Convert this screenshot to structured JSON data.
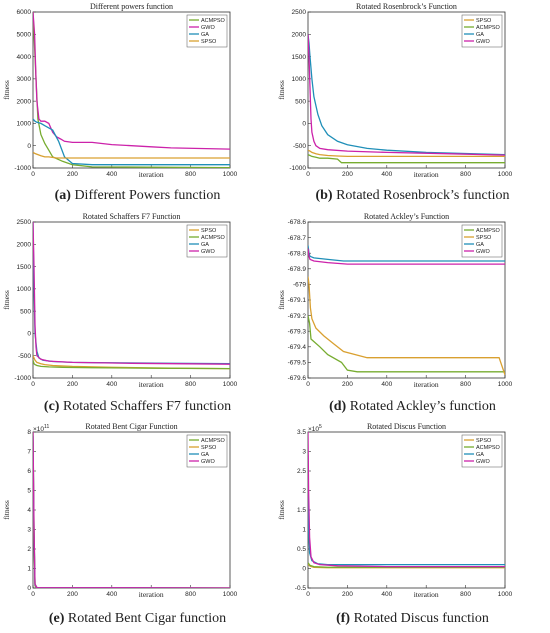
{
  "colors": {
    "ACMPSO": "#77ac30",
    "GWO": "#cc22aa",
    "GA": "#1f8fb8",
    "SPSO": "#d9a030"
  },
  "captions": [
    {
      "letter": "(a)",
      "text": " Different Powers function"
    },
    {
      "letter": "(b)",
      "text": " Rotated Rosenbrock’s function"
    },
    {
      "letter": "(c)",
      "text": " Rotated Schaffers F7 function"
    },
    {
      "letter": "(d)",
      "text": " Rotated Ackley’s function"
    },
    {
      "letter": "(e)",
      "text": " Rotated Bent Cigar function"
    },
    {
      "letter": "(f)",
      "text": " Rotated Discus function"
    }
  ],
  "chart_data": [
    {
      "type": "line",
      "title": "Different powers function",
      "xlabel": "iteration",
      "ylabel": "fitness",
      "xlim": [
        0,
        1000
      ],
      "ylim": [
        -1000,
        6000
      ],
      "xticks": [
        "0",
        "200",
        "400",
        "600",
        "800",
        "1000"
      ],
      "yticks": [
        "-1000",
        "0",
        "1000",
        "2000",
        "3000",
        "4000",
        "5000",
        "6000"
      ],
      "legend": [
        "ACMPSO",
        "GWO",
        "GA",
        "SPSO"
      ],
      "legend_position": "top-right",
      "series": [
        {
          "name": "ACMPSO",
          "x": [
            0,
            10,
            25,
            40,
            60,
            80,
            100,
            150,
            200,
            300,
            1000
          ],
          "y": [
            6000,
            4000,
            1200,
            500,
            100,
            -200,
            -500,
            -700,
            -850,
            -950,
            -980
          ]
        },
        {
          "name": "GWO",
          "x": [
            0,
            8,
            15,
            20,
            30,
            40,
            60,
            80,
            100,
            120,
            140,
            160,
            200,
            300,
            350,
            400,
            600,
            700,
            1000
          ],
          "y": [
            6000,
            5000,
            3000,
            2000,
            1200,
            1100,
            1100,
            1000,
            600,
            400,
            300,
            200,
            150,
            150,
            100,
            50,
            -50,
            -100,
            -150
          ]
        },
        {
          "name": "GA",
          "x": [
            0,
            5,
            10,
            20,
            40,
            60,
            80,
            100,
            130,
            160,
            200,
            300,
            1000
          ],
          "y": [
            1200,
            1150,
            1100,
            1050,
            1000,
            900,
            800,
            700,
            200,
            -500,
            -800,
            -850,
            -850
          ]
        },
        {
          "name": "SPSO",
          "x": [
            0,
            10,
            25,
            40,
            60,
            80,
            120,
            200,
            400,
            1000
          ],
          "y": [
            -300,
            -350,
            -400,
            -450,
            -500,
            -500,
            -550,
            -550,
            -550,
            -550
          ]
        }
      ]
    },
    {
      "type": "line",
      "title": "Rotated Rosenbrock’s Function",
      "xlabel": "iteration",
      "ylabel": "fitness",
      "xlim": [
        0,
        1000
      ],
      "ylim": [
        -1000,
        2500
      ],
      "xticks": [
        "0",
        "200",
        "400",
        "600",
        "800",
        "1000"
      ],
      "yticks": [
        "-1000",
        "-500",
        "0",
        "500",
        "1000",
        "1500",
        "2000",
        "2500"
      ],
      "legend": [
        "SPSO",
        "ACMPSO",
        "GA",
        "GWO"
      ],
      "legend_position": "top-right",
      "series": [
        {
          "name": "SPSO",
          "x": [
            0,
            10,
            20,
            40,
            60,
            100,
            150,
            200,
            300,
            500,
            800,
            1000
          ],
          "y": [
            -600,
            -620,
            -650,
            -680,
            -700,
            -720,
            -730,
            -740,
            -740,
            -740,
            -740,
            -740
          ]
        },
        {
          "name": "ACMPSO",
          "x": [
            0,
            10,
            20,
            40,
            60,
            80,
            100,
            150,
            170,
            300,
            600,
            1000
          ],
          "y": [
            -700,
            -720,
            -740,
            -760,
            -780,
            -780,
            -780,
            -800,
            -880,
            -880,
            -880,
            -880
          ]
        },
        {
          "name": "GA",
          "x": [
            0,
            5,
            10,
            20,
            30,
            50,
            70,
            100,
            150,
            200,
            300,
            400,
            600,
            1000
          ],
          "y": [
            2000,
            1800,
            1500,
            1000,
            600,
            200,
            -50,
            -250,
            -400,
            -480,
            -560,
            -600,
            -650,
            -700
          ]
        },
        {
          "name": "GWO",
          "x": [
            0,
            5,
            10,
            15,
            20,
            30,
            40,
            60,
            100,
            200,
            400,
            700,
            1000
          ],
          "y": [
            2000,
            1500,
            800,
            100,
            -200,
            -400,
            -500,
            -560,
            -590,
            -620,
            -650,
            -680,
            -710
          ]
        }
      ]
    },
    {
      "type": "line",
      "title": "Rotated Schaffers F7 Function",
      "xlabel": "iteration",
      "ylabel": "fitness",
      "xlim": [
        0,
        1000
      ],
      "ylim": [
        -1000,
        2500
      ],
      "xticks": [
        "0",
        "200",
        "400",
        "600",
        "800",
        "1000"
      ],
      "yticks": [
        "-1000",
        "-500",
        "0",
        "500",
        "1000",
        "1500",
        "2000",
        "2500"
      ],
      "legend": [
        "SPSO",
        "ACMPSO",
        "GA",
        "GWO"
      ],
      "legend_position": "top-right",
      "series": [
        {
          "name": "SPSO",
          "x": [
            0,
            10,
            20,
            40,
            60,
            100,
            200,
            400,
            700,
            1000
          ],
          "y": [
            -500,
            -600,
            -650,
            -680,
            -700,
            -720,
            -740,
            -760,
            -780,
            -790
          ]
        },
        {
          "name": "ACMPSO",
          "x": [
            0,
            5,
            10,
            20,
            40,
            80,
            150,
            300,
            600,
            1000
          ],
          "y": [
            -600,
            -680,
            -700,
            -720,
            -740,
            -750,
            -760,
            -770,
            -780,
            -790
          ]
        },
        {
          "name": "GA",
          "x": [
            0,
            5,
            10,
            20,
            30,
            50,
            100,
            200,
            400,
            700,
            1000
          ],
          "y": [
            2500,
            1000,
            0,
            -400,
            -550,
            -600,
            -630,
            -650,
            -660,
            -670,
            -680
          ]
        },
        {
          "name": "GWO",
          "x": [
            0,
            5,
            10,
            15,
            20,
            40,
            80,
            200,
            500,
            1000
          ],
          "y": [
            2500,
            1500,
            200,
            -300,
            -500,
            -580,
            -620,
            -650,
            -670,
            -690
          ]
        }
      ]
    },
    {
      "type": "line",
      "title": "Rotated Ackley’s Function",
      "xlabel": "iteration",
      "ylabel": "fitness",
      "xlim": [
        0,
        1000
      ],
      "ylim": [
        -679.6,
        -678.6
      ],
      "xticks": [
        "0",
        "200",
        "400",
        "600",
        "800",
        "1000"
      ],
      "yticks": [
        "-679.6",
        "-679.5",
        "-679.4",
        "-679.3",
        "-679.2",
        "-679.1",
        "-679",
        "-678.9",
        "-678.8",
        "-678.7",
        "-678.6"
      ],
      "legend": [
        "ACMPSO",
        "SPSO",
        "GA",
        "GWO"
      ],
      "legend_position": "top-right",
      "series": [
        {
          "name": "ACMPSO",
          "x": [
            0,
            8,
            15,
            60,
            100,
            170,
            200,
            250,
            1000
          ],
          "y": [
            -679.2,
            -679.25,
            -679.35,
            -679.4,
            -679.45,
            -679.5,
            -679.55,
            -679.56,
            -679.56
          ]
        },
        {
          "name": "SPSO",
          "x": [
            0,
            5,
            12,
            20,
            40,
            80,
            130,
            180,
            300,
            500,
            970,
            1000
          ],
          "y": [
            -678.95,
            -679.0,
            -679.15,
            -679.22,
            -679.28,
            -679.33,
            -679.38,
            -679.43,
            -679.47,
            -679.47,
            -679.47,
            -679.58
          ]
        },
        {
          "name": "GA",
          "x": [
            0,
            5,
            10,
            30,
            100,
            180,
            300,
            500,
            700,
            1000
          ],
          "y": [
            -678.75,
            -678.8,
            -678.82,
            -678.83,
            -678.84,
            -678.85,
            -678.85,
            -678.85,
            -678.85,
            -678.85
          ]
        },
        {
          "name": "GWO",
          "x": [
            0,
            5,
            10,
            30,
            100,
            200,
            500,
            1000
          ],
          "y": [
            -678.77,
            -678.82,
            -678.84,
            -678.85,
            -678.86,
            -678.87,
            -678.87,
            -678.87
          ]
        }
      ]
    },
    {
      "type": "line",
      "title": "Rotated Bent Cigar Function",
      "xlabel": "iteration",
      "ylabel": "fitness",
      "exponent_label": "×10",
      "exponent": "11",
      "xlim": [
        0,
        1000
      ],
      "ylim": [
        0,
        8
      ],
      "xticks": [
        "0",
        "200",
        "400",
        "600",
        "800",
        "1000"
      ],
      "yticks": [
        "0",
        "1",
        "2",
        "3",
        "4",
        "5",
        "6",
        "7",
        "8"
      ],
      "legend": [
        "ACMPSO",
        "SPSO",
        "GA",
        "GWO"
      ],
      "legend_position": "top-right",
      "series": [
        {
          "name": "ACMPSO",
          "x": [
            0,
            5,
            10,
            20,
            1000
          ],
          "y": [
            8,
            3,
            0.2,
            0.02,
            0.0
          ]
        },
        {
          "name": "SPSO",
          "x": [
            0,
            5,
            10,
            20,
            1000
          ],
          "y": [
            7.5,
            2.5,
            0.1,
            0.02,
            0.0
          ]
        },
        {
          "name": "GA",
          "x": [
            0,
            5,
            10,
            20,
            1000
          ],
          "y": [
            7.8,
            2.8,
            0.15,
            0.02,
            0.0
          ]
        },
        {
          "name": "GWO",
          "x": [
            0,
            5,
            10,
            20,
            1000
          ],
          "y": [
            8,
            3.2,
            0.2,
            0.02,
            0.0
          ]
        }
      ]
    },
    {
      "type": "line",
      "title": "Rotated Discus Function",
      "xlabel": "iteration",
      "ylabel": "fitness",
      "exponent_label": "×10",
      "exponent": "5",
      "xlim": [
        0,
        1000
      ],
      "ylim": [
        -0.5,
        3.5
      ],
      "xticks": [
        "0",
        "200",
        "400",
        "600",
        "800",
        "1000"
      ],
      "yticks": [
        "-0.5",
        "0",
        "0.5",
        "1",
        "1.5",
        "2",
        "2.5",
        "3",
        "3.5"
      ],
      "legend": [
        "SPSO",
        "ACMPSO",
        "GA",
        "GWO"
      ],
      "legend_position": "top-right",
      "series": [
        {
          "name": "SPSO",
          "x": [
            0,
            10,
            30,
            100,
            300,
            1000
          ],
          "y": [
            0.12,
            0.06,
            0.03,
            0.02,
            0.02,
            0.02
          ]
        },
        {
          "name": "ACMPSO",
          "x": [
            0,
            10,
            30,
            100,
            300,
            1000
          ],
          "y": [
            0.15,
            0.08,
            0.05,
            0.03,
            0.03,
            0.03
          ]
        },
        {
          "name": "GA",
          "x": [
            0,
            3,
            8,
            20,
            50,
            100,
            200,
            1000
          ],
          "y": [
            2.9,
            1.0,
            0.4,
            0.2,
            0.12,
            0.1,
            0.1,
            0.1
          ]
        },
        {
          "name": "GWO",
          "x": [
            0,
            3,
            8,
            15,
            30,
            60,
            150,
            400,
            1000
          ],
          "y": [
            3.5,
            2.0,
            0.8,
            0.3,
            0.15,
            0.1,
            0.07,
            0.05,
            0.05
          ]
        }
      ]
    }
  ]
}
